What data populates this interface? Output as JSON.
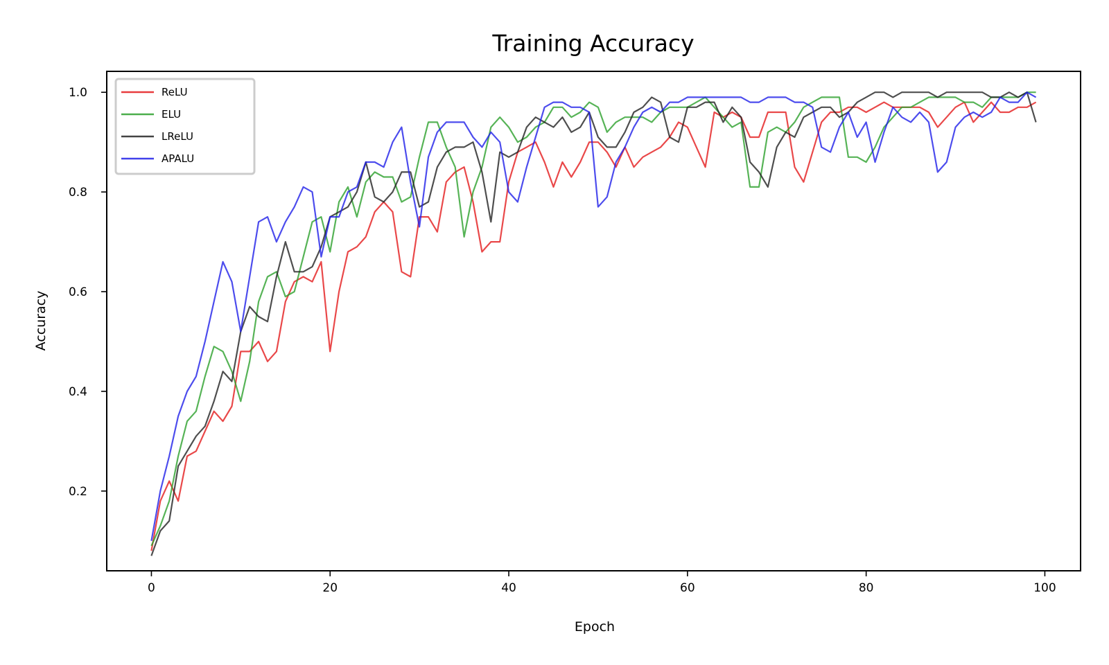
{
  "chart_data": {
    "type": "line",
    "title": "Training Accuracy",
    "xlabel": "Epoch",
    "ylabel": "Accuracy",
    "xlim": [
      -5,
      104
    ],
    "ylim": [
      0.04,
      1.042
    ],
    "xticks": [
      0,
      20,
      40,
      60,
      80,
      100
    ],
    "yticks": [
      0.2,
      0.4,
      0.6,
      0.8,
      1.0
    ],
    "xtick_labels": [
      "0",
      "20",
      "40",
      "60",
      "80",
      "100"
    ],
    "ytick_labels": [
      "0.2",
      "0.4",
      "0.6",
      "0.8",
      "1.0"
    ],
    "grid": false,
    "legend_position": "top-left",
    "x": [
      0,
      1,
      2,
      3,
      4,
      5,
      6,
      7,
      8,
      9,
      10,
      11,
      12,
      13,
      14,
      15,
      16,
      17,
      18,
      19,
      20,
      21,
      22,
      23,
      24,
      25,
      26,
      27,
      28,
      29,
      30,
      31,
      32,
      33,
      34,
      35,
      36,
      37,
      38,
      39,
      40,
      41,
      42,
      43,
      44,
      45,
      46,
      47,
      48,
      49,
      50,
      51,
      52,
      53,
      54,
      55,
      56,
      57,
      58,
      59,
      60,
      61,
      62,
      63,
      64,
      65,
      66,
      67,
      68,
      69,
      70,
      71,
      72,
      73,
      74,
      75,
      76,
      77,
      78,
      79,
      80,
      81,
      82,
      83,
      84,
      85,
      86,
      87,
      88,
      89,
      90,
      91,
      92,
      93,
      94,
      95,
      96,
      97,
      98,
      99
    ],
    "series": [
      {
        "name": "ReLU",
        "color": "#e41a1c",
        "values": [
          0.08,
          0.18,
          0.22,
          0.18,
          0.27,
          0.28,
          0.32,
          0.36,
          0.34,
          0.37,
          0.48,
          0.48,
          0.5,
          0.46,
          0.48,
          0.58,
          0.62,
          0.63,
          0.62,
          0.66,
          0.48,
          0.6,
          0.68,
          0.69,
          0.71,
          0.76,
          0.78,
          0.76,
          0.64,
          0.63,
          0.75,
          0.75,
          0.72,
          0.82,
          0.84,
          0.85,
          0.78,
          0.68,
          0.7,
          0.7,
          0.82,
          0.88,
          0.89,
          0.9,
          0.86,
          0.81,
          0.86,
          0.83,
          0.86,
          0.9,
          0.9,
          0.88,
          0.85,
          0.89,
          0.85,
          0.87,
          0.88,
          0.89,
          0.91,
          0.94,
          0.93,
          0.89,
          0.85,
          0.96,
          0.95,
          0.96,
          0.95,
          0.91,
          0.91,
          0.96,
          0.96,
          0.96,
          0.85,
          0.82,
          0.88,
          0.94,
          0.96,
          0.96,
          0.97,
          0.97,
          0.96,
          0.97,
          0.98,
          0.97,
          0.97,
          0.97,
          0.97,
          0.96,
          0.93,
          0.95,
          0.97,
          0.98,
          0.94,
          0.96,
          0.98,
          0.96,
          0.96,
          0.97,
          0.97,
          0.98
        ]
      },
      {
        "name": "ELU",
        "color": "#2ca02c",
        "values": [
          0.09,
          0.13,
          0.18,
          0.27,
          0.34,
          0.36,
          0.43,
          0.49,
          0.48,
          0.44,
          0.38,
          0.46,
          0.58,
          0.63,
          0.64,
          0.59,
          0.6,
          0.67,
          0.74,
          0.75,
          0.68,
          0.78,
          0.81,
          0.75,
          0.82,
          0.84,
          0.83,
          0.83,
          0.78,
          0.79,
          0.87,
          0.94,
          0.94,
          0.89,
          0.85,
          0.71,
          0.8,
          0.85,
          0.93,
          0.95,
          0.93,
          0.9,
          0.91,
          0.93,
          0.94,
          0.97,
          0.97,
          0.95,
          0.96,
          0.98,
          0.97,
          0.92,
          0.94,
          0.95,
          0.95,
          0.95,
          0.94,
          0.96,
          0.97,
          0.97,
          0.97,
          0.98,
          0.99,
          0.97,
          0.95,
          0.93,
          0.94,
          0.81,
          0.81,
          0.92,
          0.93,
          0.92,
          0.94,
          0.97,
          0.98,
          0.99,
          0.99,
          0.99,
          0.87,
          0.87,
          0.86,
          0.89,
          0.93,
          0.95,
          0.97,
          0.97,
          0.98,
          0.99,
          0.99,
          0.99,
          0.99,
          0.98,
          0.98,
          0.97,
          0.99,
          0.99,
          0.99,
          0.99,
          1.0,
          1.0
        ]
      },
      {
        "name": "LReLU",
        "color": "#222222",
        "values": [
          0.07,
          0.12,
          0.14,
          0.25,
          0.28,
          0.31,
          0.33,
          0.38,
          0.44,
          0.42,
          0.52,
          0.57,
          0.55,
          0.54,
          0.63,
          0.7,
          0.64,
          0.64,
          0.65,
          0.69,
          0.75,
          0.76,
          0.77,
          0.8,
          0.86,
          0.79,
          0.78,
          0.8,
          0.84,
          0.84,
          0.77,
          0.78,
          0.85,
          0.88,
          0.89,
          0.89,
          0.9,
          0.84,
          0.74,
          0.88,
          0.87,
          0.88,
          0.93,
          0.95,
          0.94,
          0.93,
          0.95,
          0.92,
          0.93,
          0.96,
          0.91,
          0.89,
          0.89,
          0.92,
          0.96,
          0.97,
          0.99,
          0.98,
          0.91,
          0.9,
          0.97,
          0.97,
          0.98,
          0.98,
          0.94,
          0.97,
          0.95,
          0.86,
          0.84,
          0.81,
          0.89,
          0.92,
          0.91,
          0.95,
          0.96,
          0.97,
          0.97,
          0.95,
          0.96,
          0.98,
          0.99,
          1.0,
          1.0,
          0.99,
          1.0,
          1.0,
          1.0,
          1.0,
          0.99,
          1.0,
          1.0,
          1.0,
          1.0,
          1.0,
          0.99,
          0.99,
          1.0,
          0.99,
          1.0,
          0.94
        ]
      },
      {
        "name": "APALU",
        "color": "#1f1fe8",
        "values": [
          0.1,
          0.2,
          0.27,
          0.35,
          0.4,
          0.43,
          0.5,
          0.58,
          0.66,
          0.62,
          0.52,
          0.63,
          0.74,
          0.75,
          0.7,
          0.74,
          0.77,
          0.81,
          0.8,
          0.67,
          0.75,
          0.75,
          0.8,
          0.81,
          0.86,
          0.86,
          0.85,
          0.9,
          0.93,
          0.82,
          0.73,
          0.87,
          0.92,
          0.94,
          0.94,
          0.94,
          0.91,
          0.89,
          0.92,
          0.9,
          0.8,
          0.78,
          0.85,
          0.91,
          0.97,
          0.98,
          0.98,
          0.97,
          0.97,
          0.96,
          0.77,
          0.79,
          0.86,
          0.89,
          0.93,
          0.96,
          0.97,
          0.96,
          0.98,
          0.98,
          0.99,
          0.99,
          0.99,
          0.99,
          0.99,
          0.99,
          0.99,
          0.98,
          0.98,
          0.99,
          0.99,
          0.99,
          0.98,
          0.98,
          0.97,
          0.89,
          0.88,
          0.93,
          0.96,
          0.91,
          0.94,
          0.86,
          0.92,
          0.97,
          0.95,
          0.94,
          0.96,
          0.94,
          0.84,
          0.86,
          0.93,
          0.95,
          0.96,
          0.95,
          0.96,
          0.99,
          0.98,
          0.98,
          1.0,
          0.99
        ]
      }
    ]
  }
}
